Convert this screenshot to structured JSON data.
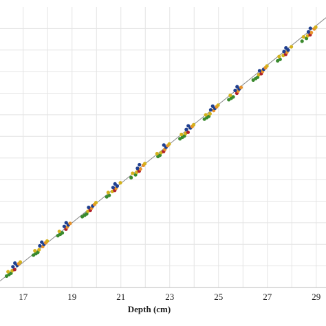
{
  "chart_data": {
    "type": "scatter",
    "title": "",
    "xlabel": "Depth (cm)",
    "ylabel": "",
    "xlim": [
      16.05,
      29.4
    ],
    "ylim": [
      0,
      13
    ],
    "x_ticks": [
      "17",
      "19",
      "21",
      "23",
      "25",
      "27",
      "29"
    ],
    "grid": true,
    "legend": "none",
    "colors": {
      "blue": "#1f3f8f",
      "orange": "#e8922a",
      "yellow": "#d4b21c",
      "green": "#3a8a2e",
      "red": "#b0212a",
      "line": "#888888",
      "grid": "#e4e4e4"
    },
    "fit_line": {
      "x": [
        16.05,
        29.4
      ],
      "y": [
        0.3,
        12.5
      ]
    },
    "groups": [
      {
        "depth": 16.6,
        "y": 0.88
      },
      {
        "depth": 17.7,
        "y": 1.85
      },
      {
        "depth": 18.7,
        "y": 2.75
      },
      {
        "depth": 19.7,
        "y": 3.63
      },
      {
        "depth": 20.7,
        "y": 4.55
      },
      {
        "depth": 21.7,
        "y": 5.44
      },
      {
        "depth": 22.7,
        "y": 6.35
      },
      {
        "depth": 23.7,
        "y": 7.24
      },
      {
        "depth": 24.7,
        "y": 8.15
      },
      {
        "depth": 25.7,
        "y": 9.05
      },
      {
        "depth": 26.7,
        "y": 9.96
      },
      {
        "depth": 27.7,
        "y": 10.85
      },
      {
        "depth": 28.7,
        "y": 11.76
      }
    ]
  }
}
